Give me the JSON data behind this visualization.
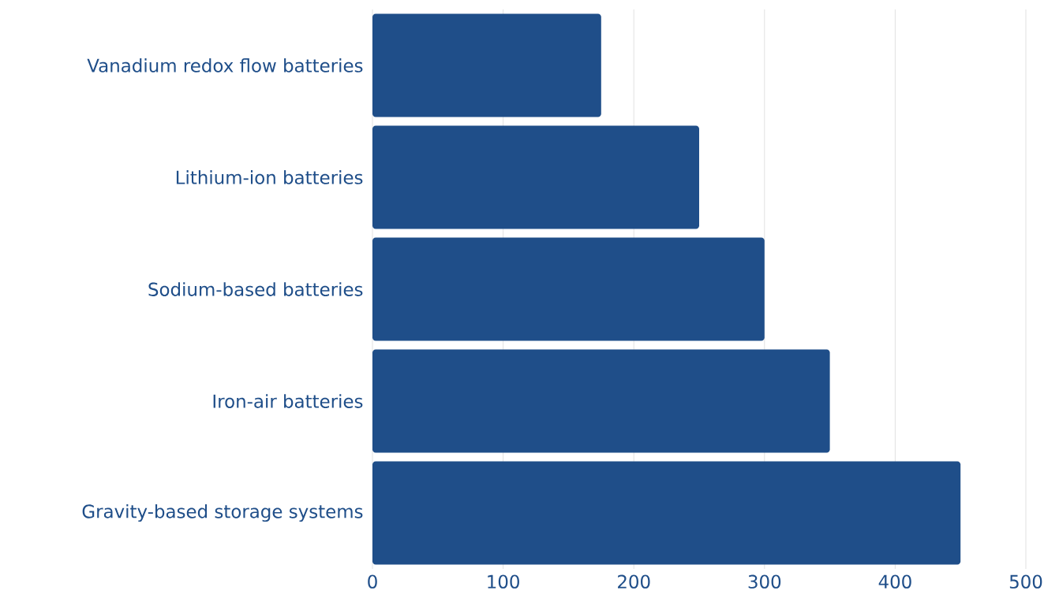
{
  "chart_data": {
    "type": "bar",
    "orientation": "horizontal",
    "categories": [
      "Vanadium redox flow batteries",
      "Lithium-ion batteries",
      "Sodium-based batteries",
      "Iron-air batteries",
      "Gravity-based storage systems"
    ],
    "values": [
      175,
      250,
      300,
      350,
      450
    ],
    "color": "#1f4e89",
    "xlim": [
      0,
      500
    ],
    "xticks": [
      0,
      100,
      200,
      300,
      400,
      500
    ],
    "grid": "x"
  }
}
